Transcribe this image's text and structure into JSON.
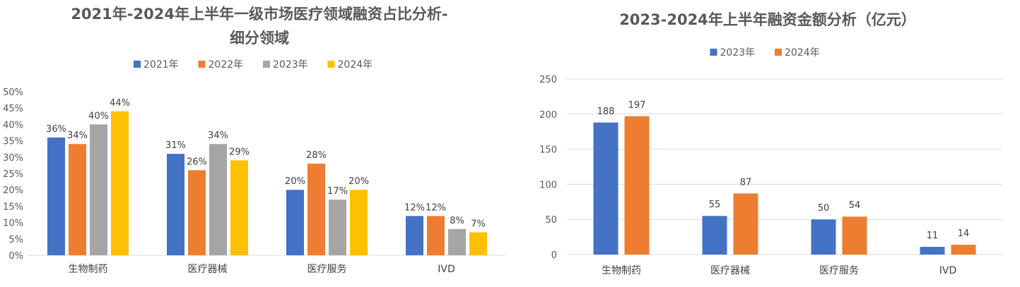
{
  "chart_data": [
    {
      "type": "bar",
      "title_lines": [
        "2021年-2024年上半年一级市场医疗领域融资占比分析-",
        "细分领域"
      ],
      "categories": [
        "生物制药",
        "医疗器械",
        "医疗服务",
        "IVD"
      ],
      "series": [
        {
          "name": "2021年",
          "values": [
            36,
            31,
            20,
            12
          ],
          "labels": [
            "36%",
            "31%",
            "20%",
            "12%"
          ]
        },
        {
          "name": "2022年",
          "values": [
            34,
            26,
            28,
            12
          ],
          "labels": [
            "34%",
            "26%",
            "28%",
            "12%"
          ]
        },
        {
          "name": "2023年",
          "values": [
            40,
            34,
            17,
            8
          ],
          "labels": [
            "40%",
            "34%",
            "17%",
            "8%"
          ]
        },
        {
          "name": "2024年",
          "values": [
            44,
            29,
            20,
            7
          ],
          "labels": [
            "44%",
            "29%",
            "20%",
            "7%"
          ]
        }
      ],
      "ylim": [
        0,
        50
      ],
      "yticks": [
        "0%",
        "5%",
        "10%",
        "15%",
        "20%",
        "25%",
        "30%",
        "35%",
        "40%",
        "45%",
        "50%"
      ],
      "grid": false,
      "legend": "top-center",
      "colors": [
        "#4472C4",
        "#ED7D31",
        "#A5A5A5",
        "#FFC000"
      ]
    },
    {
      "type": "bar",
      "title_lines": [
        "2023-2024年上半年融资金额分析（亿元）"
      ],
      "categories": [
        "生物制药",
        "医疗器械",
        "医疗服务",
        "IVD"
      ],
      "series": [
        {
          "name": "2023年",
          "values": [
            188,
            55,
            50,
            11
          ],
          "labels": [
            "188",
            "55",
            "50",
            "11"
          ]
        },
        {
          "name": "2024年",
          "values": [
            197,
            87,
            54,
            14
          ],
          "labels": [
            "197",
            "87",
            "54",
            "14"
          ]
        }
      ],
      "ylim": [
        0,
        250
      ],
      "yticks": [
        "0",
        "50",
        "100",
        "150",
        "200",
        "250"
      ],
      "grid": true,
      "legend": "top-center",
      "colors": [
        "#4472C4",
        "#ED7D31"
      ]
    }
  ]
}
